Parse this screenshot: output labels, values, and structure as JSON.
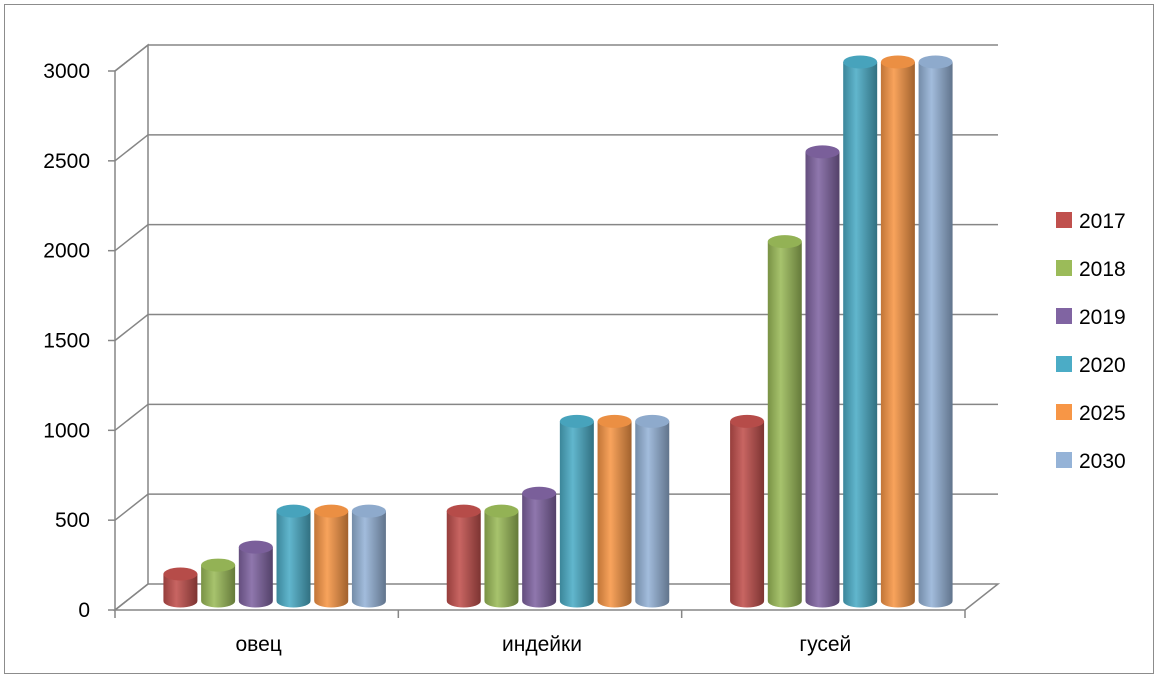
{
  "chart_data": {
    "type": "bar",
    "style": "3d-cylinder",
    "categories": [
      "овец",
      "индейки",
      "гусей"
    ],
    "series": [
      {
        "name": "2017",
        "color": "#c0504d",
        "values": [
          150,
          500,
          1000
        ]
      },
      {
        "name": "2018",
        "color": "#9bbb59",
        "values": [
          200,
          500,
          2000
        ]
      },
      {
        "name": "2019",
        "color": "#8064a2",
        "values": [
          300,
          600,
          2500
        ]
      },
      {
        "name": "2020",
        "color": "#4bacc6",
        "values": [
          500,
          1000,
          3000
        ]
      },
      {
        "name": "2025",
        "color": "#f79646",
        "values": [
          500,
          1000,
          3000
        ]
      },
      {
        "name": "2030",
        "color": "#95b3d7",
        "values": [
          500,
          1000,
          3000
        ]
      }
    ],
    "yticks": [
      0,
      500,
      1000,
      1500,
      2000,
      2500,
      3000
    ],
    "ylim": [
      0,
      3000
    ],
    "grid": true,
    "legend": "right"
  }
}
